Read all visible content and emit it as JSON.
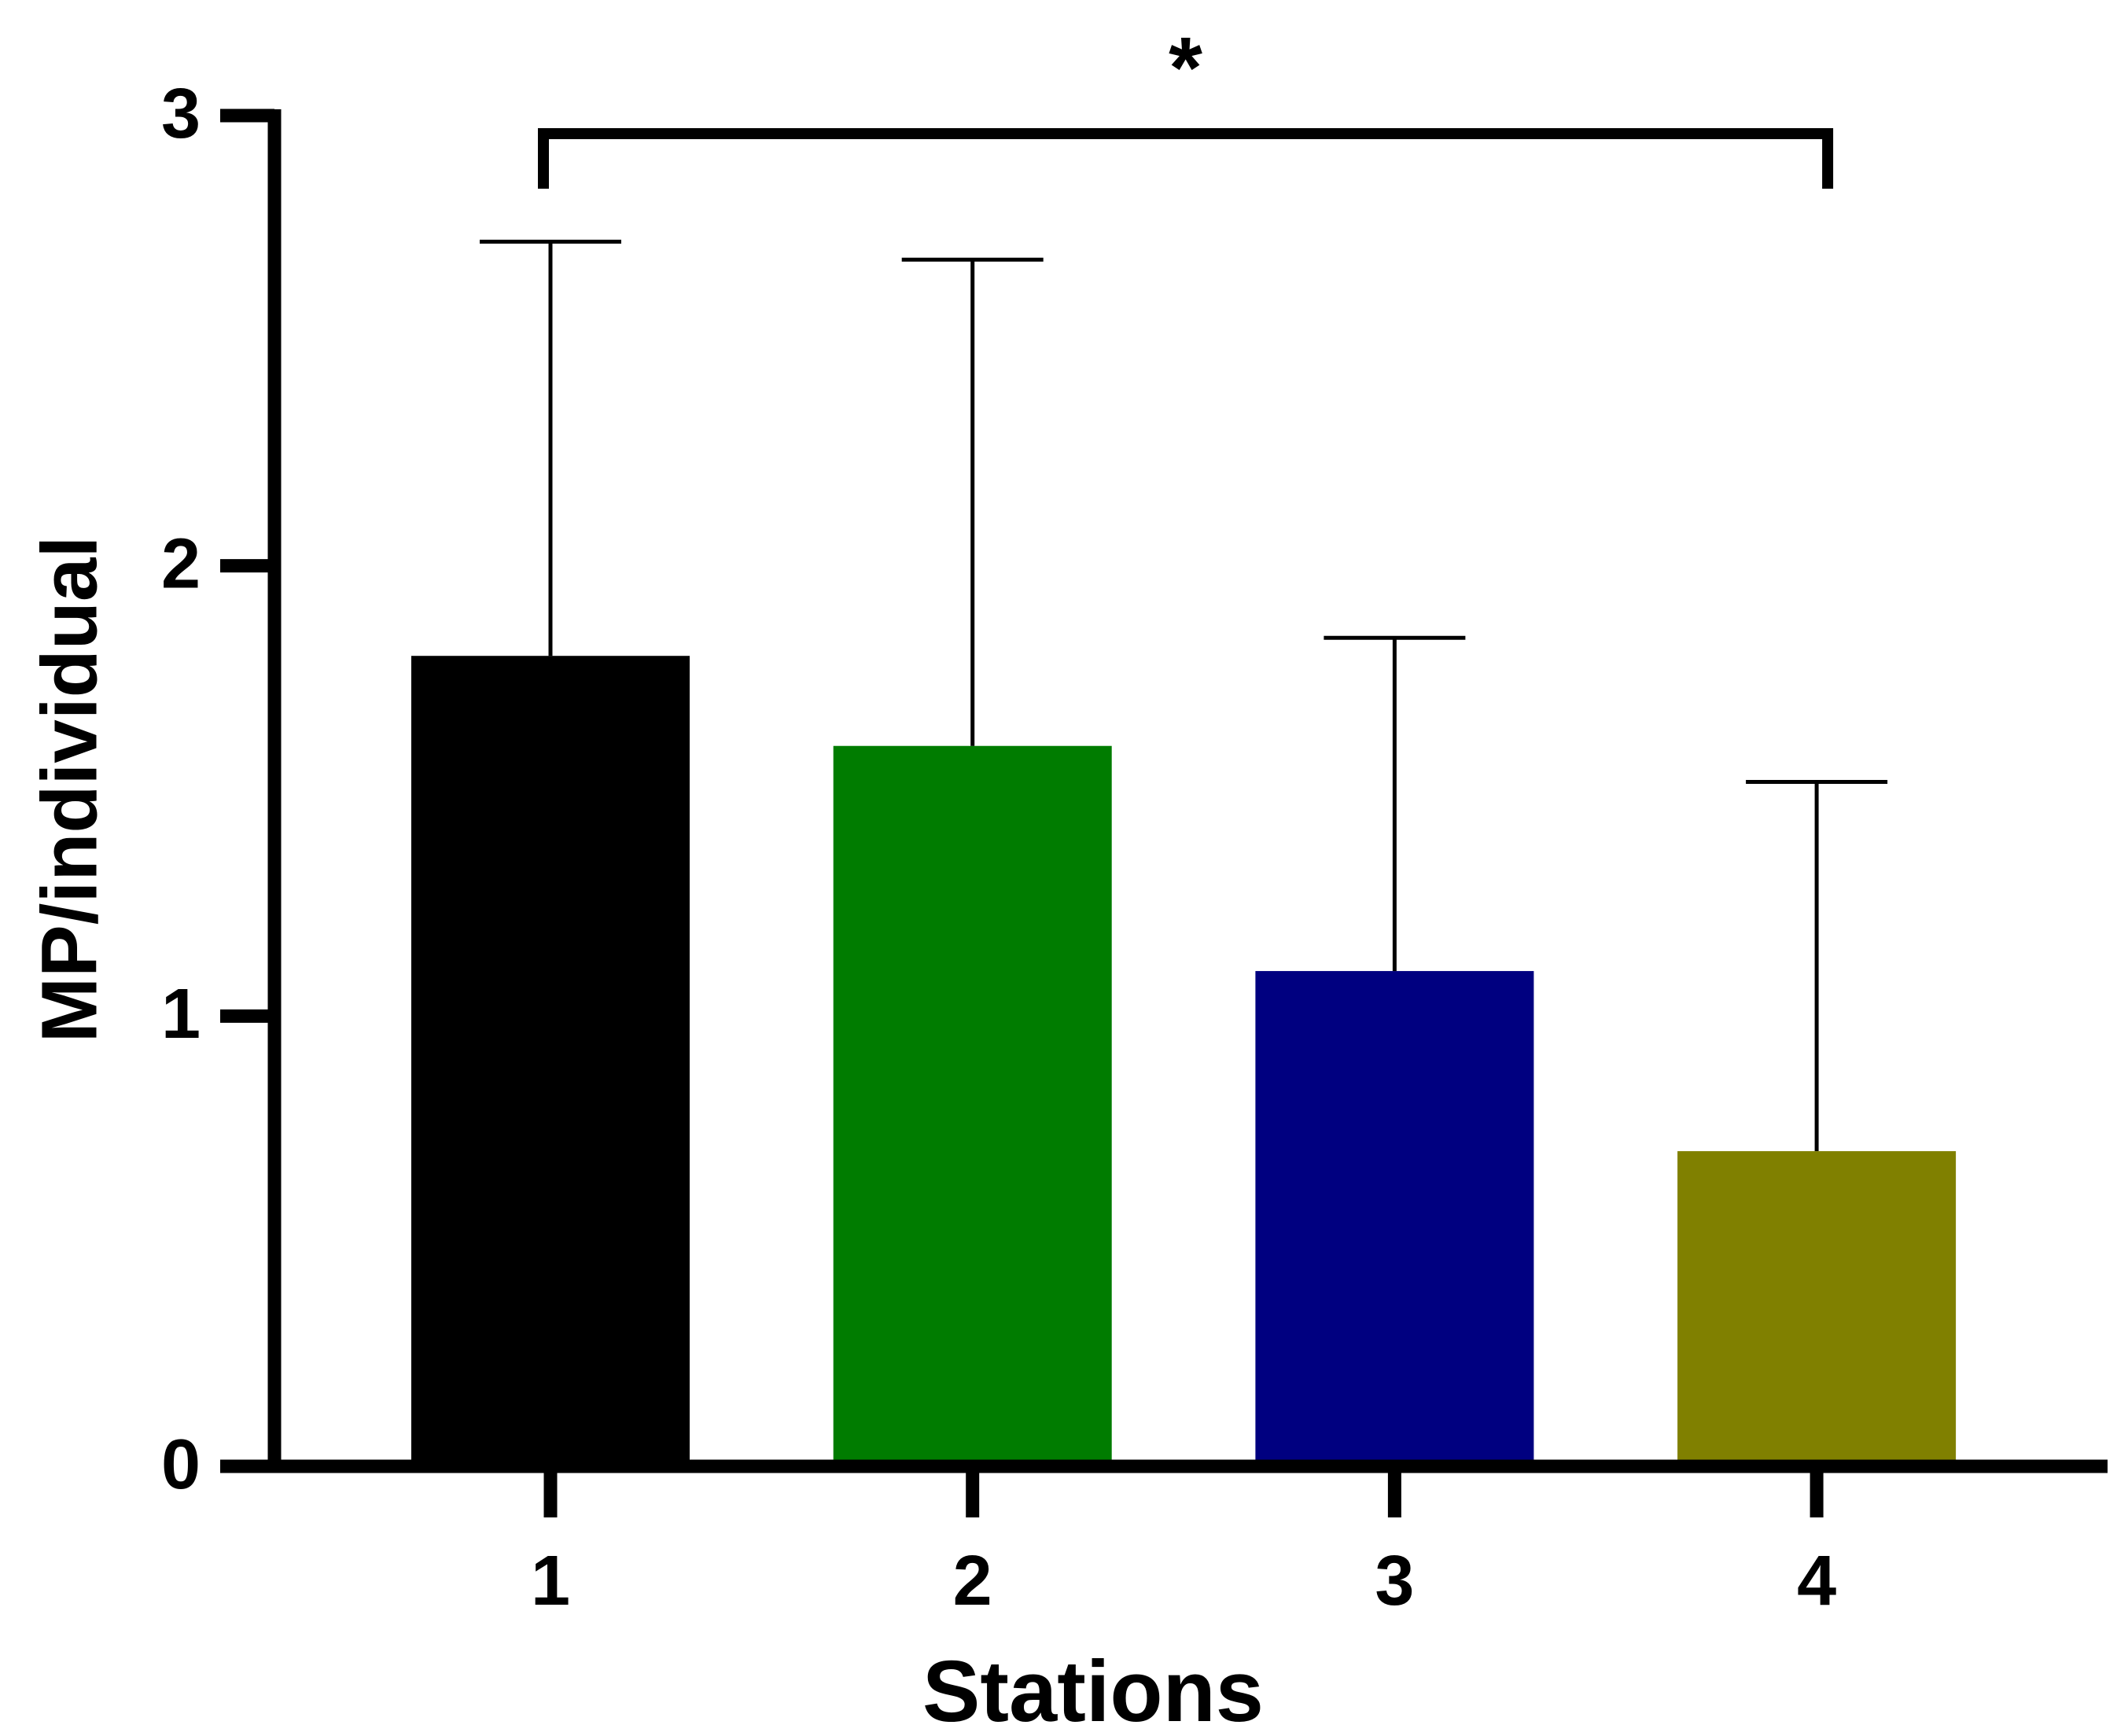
{
  "chart_data": {
    "type": "bar",
    "categories": [
      "1",
      "2",
      "3",
      "4"
    ],
    "values": [
      1.8,
      1.6,
      1.1,
      0.7
    ],
    "errors": [
      0.92,
      1.08,
      0.74,
      0.82
    ],
    "colors": [
      "#000000",
      "#007c00",
      "#000080",
      "#808000"
    ],
    "ylim": [
      0,
      3
    ],
    "yticks": [
      0,
      1,
      2,
      3
    ],
    "x_label": "Stations",
    "y_label": "MP/individual",
    "annotation": "*"
  }
}
